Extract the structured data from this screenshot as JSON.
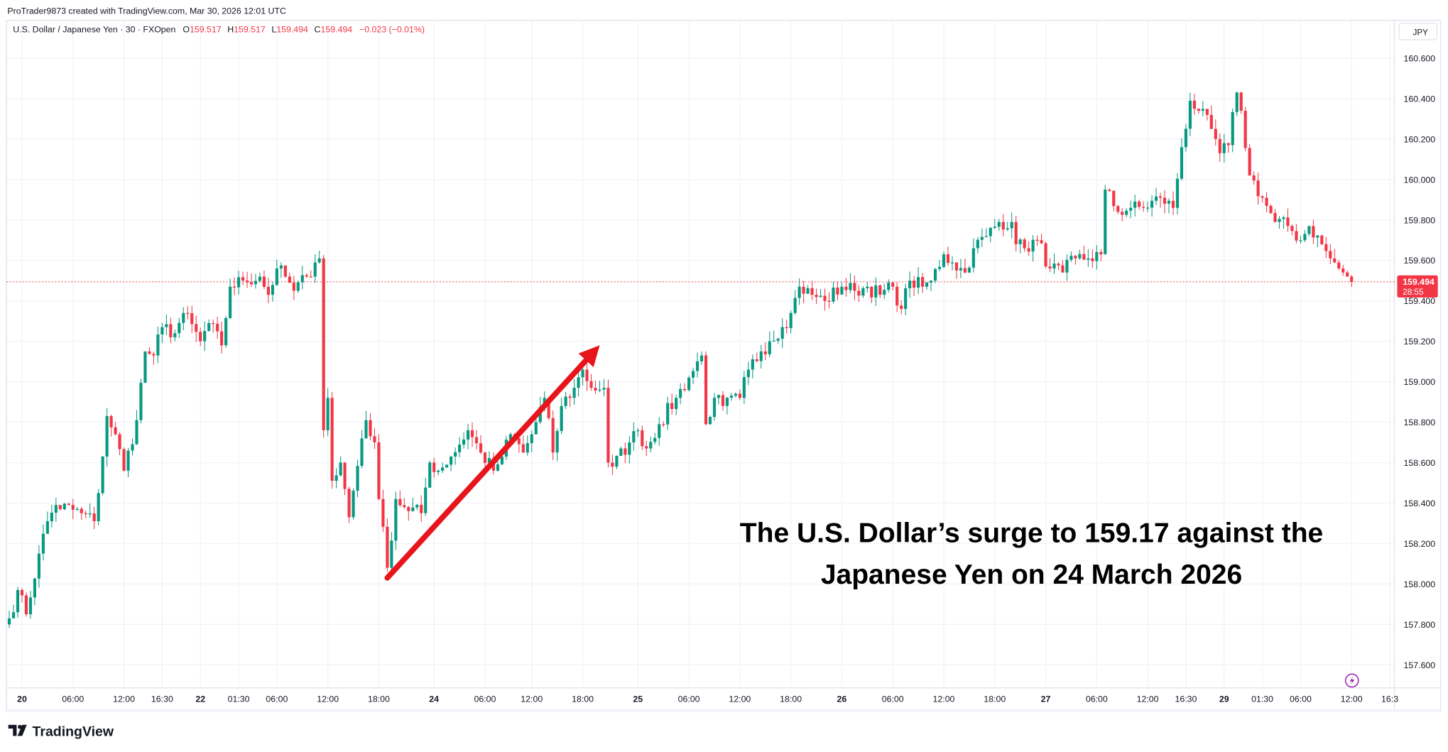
{
  "header": {
    "credit": "ProTrader9873 created with TradingView.com, Mar 30, 2026 12:01 UTC",
    "symbol": "U.S. Dollar / Japanese Yen · 30 · FXOpen",
    "o_label": "O",
    "o_value": "159.517",
    "h_label": "H",
    "h_value": "159.517",
    "l_label": "L",
    "l_value": "159.494",
    "c_label": "C",
    "c_value": "159.494",
    "change": "−0.023 (−0.01%)"
  },
  "currency_button": "JPY",
  "last_price": {
    "value": "159.494",
    "countdown": "28:55"
  },
  "annotation": {
    "line1": "The U.S. Dollar’s surge to 159.17 against the",
    "line2": "Japanese Yen on 24 March 2026"
  },
  "footer": {
    "logo_text": "TradingView"
  },
  "colors": {
    "up": "#089981",
    "down": "#f23645",
    "arrow": "#e8141b",
    "accent": "#9c27b0"
  },
  "chart_data": {
    "type": "candlestick",
    "title": "U.S. Dollar / Japanese Yen · 30 · FXOpen",
    "ylabel": "JPY",
    "ylim": [
      157.5,
      160.75
    ],
    "y_ticks": [
      "160.600",
      "160.400",
      "160.200",
      "160.000",
      "159.800",
      "159.600",
      "159.400",
      "159.200",
      "159.000",
      "158.800",
      "158.600",
      "158.400",
      "158.200",
      "158.000",
      "157.800",
      "157.600"
    ],
    "x_ticks": [
      [
        "20",
        3
      ],
      [
        "06:00",
        15
      ],
      [
        "12:00",
        27
      ],
      [
        "16:30",
        36
      ],
      [
        "22",
        45
      ],
      [
        "01:30",
        54
      ],
      [
        "06:00",
        63
      ],
      [
        "12:00",
        75
      ],
      [
        "18:00",
        87
      ],
      [
        "24",
        100
      ],
      [
        "06:00",
        112
      ],
      [
        "12:00",
        123
      ],
      [
        "18:00",
        135
      ],
      [
        "25",
        148
      ],
      [
        "06:00",
        160
      ],
      [
        "12:00",
        172
      ],
      [
        "18:00",
        184
      ],
      [
        "26",
        196
      ],
      [
        "06:00",
        208
      ],
      [
        "12:00",
        220
      ],
      [
        "18:00",
        232
      ],
      [
        "27",
        244
      ],
      [
        "06:00",
        256
      ],
      [
        "12:00",
        268
      ],
      [
        "16:30",
        277
      ],
      [
        "29",
        286
      ],
      [
        "01:30",
        295
      ],
      [
        "06:00",
        304
      ],
      [
        "12:00",
        316
      ],
      [
        "16:3",
        325
      ]
    ],
    "bar_count": 317,
    "close_anchors": [
      [
        0,
        157.83
      ],
      [
        2,
        157.97
      ],
      [
        4,
        157.85
      ],
      [
        7,
        158.15
      ],
      [
        9,
        158.31
      ],
      [
        11,
        158.39
      ],
      [
        17,
        158.35
      ],
      [
        20,
        158.31
      ],
      [
        22,
        158.63
      ],
      [
        23,
        158.83
      ],
      [
        25,
        158.74
      ],
      [
        27,
        158.56
      ],
      [
        30,
        158.81
      ],
      [
        32,
        159.15
      ],
      [
        34,
        159.13
      ],
      [
        36,
        159.27
      ],
      [
        39,
        159.24
      ],
      [
        41,
        159.34
      ],
      [
        45,
        159.2
      ],
      [
        47,
        159.29
      ],
      [
        50,
        159.18
      ],
      [
        52,
        159.47
      ],
      [
        55,
        159.5
      ],
      [
        59,
        159.52
      ],
      [
        61,
        159.43
      ],
      [
        63,
        159.56
      ],
      [
        65,
        159.52
      ],
      [
        67,
        159.45
      ],
      [
        70,
        159.52
      ],
      [
        72,
        159.59
      ],
      [
        73,
        159.61
      ],
      [
        74,
        158.76
      ],
      [
        75,
        158.92
      ],
      [
        76,
        158.51
      ],
      [
        78,
        158.6
      ],
      [
        80,
        158.33
      ],
      [
        83,
        158.72
      ],
      [
        84,
        158.81
      ],
      [
        86,
        158.7
      ],
      [
        87,
        158.42
      ],
      [
        89,
        158.08
      ],
      [
        91,
        158.42
      ],
      [
        93,
        158.38
      ],
      [
        97,
        158.35
      ],
      [
        99,
        158.6
      ],
      [
        101,
        158.56
      ],
      [
        104,
        158.63
      ],
      [
        108,
        158.76
      ],
      [
        111,
        158.65
      ],
      [
        114,
        158.56
      ],
      [
        116,
        158.63
      ],
      [
        118,
        158.74
      ],
      [
        121,
        158.65
      ],
      [
        123,
        158.74
      ],
      [
        126,
        158.92
      ],
      [
        128,
        158.65
      ],
      [
        130,
        158.88
      ],
      [
        133,
        158.97
      ],
      [
        135,
        159.06
      ],
      [
        137,
        158.97
      ],
      [
        140,
        158.97
      ],
      [
        141,
        158.6
      ],
      [
        142,
        158.58
      ],
      [
        146,
        158.7
      ],
      [
        148,
        158.76
      ],
      [
        150,
        158.67
      ],
      [
        153,
        158.79
      ],
      [
        157,
        158.92
      ],
      [
        160,
        159.02
      ],
      [
        163,
        159.13
      ],
      [
        164,
        158.79
      ],
      [
        166,
        158.92
      ],
      [
        168,
        158.88
      ],
      [
        172,
        158.92
      ],
      [
        174,
        159.06
      ],
      [
        177,
        159.15
      ],
      [
        179,
        159.2
      ],
      [
        182,
        159.27
      ],
      [
        184,
        159.34
      ],
      [
        186,
        159.47
      ],
      [
        189,
        159.43
      ],
      [
        192,
        159.4
      ],
      [
        196,
        159.47
      ],
      [
        199,
        159.45
      ],
      [
        202,
        159.47
      ],
      [
        205,
        159.43
      ],
      [
        208,
        159.47
      ],
      [
        210,
        159.36
      ],
      [
        212,
        159.5
      ],
      [
        215,
        159.47
      ],
      [
        217,
        159.5
      ],
      [
        220,
        159.63
      ],
      [
        222,
        159.59
      ],
      [
        225,
        159.54
      ],
      [
        227,
        159.66
      ],
      [
        230,
        159.72
      ],
      [
        233,
        159.79
      ],
      [
        236,
        159.79
      ],
      [
        237,
        159.68
      ],
      [
        239,
        159.66
      ],
      [
        242,
        159.7
      ],
      [
        245,
        159.56
      ],
      [
        248,
        159.54
      ],
      [
        251,
        159.61
      ],
      [
        254,
        159.61
      ],
      [
        257,
        159.63
      ],
      [
        258,
        159.95
      ],
      [
        261,
        159.84
      ],
      [
        264,
        159.86
      ],
      [
        267,
        159.86
      ],
      [
        271,
        159.91
      ],
      [
        274,
        159.86
      ],
      [
        276,
        160.16
      ],
      [
        278,
        160.39
      ],
      [
        280,
        160.34
      ],
      [
        283,
        160.25
      ],
      [
        285,
        160.13
      ],
      [
        287,
        160.17
      ],
      [
        289,
        160.43
      ],
      [
        290,
        160.34
      ],
      [
        292,
        160.02
      ],
      [
        295,
        159.91
      ],
      [
        298,
        159.79
      ],
      [
        301,
        159.77
      ],
      [
        304,
        159.7
      ],
      [
        306,
        159.77
      ],
      [
        309,
        159.68
      ],
      [
        311,
        159.61
      ],
      [
        313,
        159.56
      ],
      [
        315,
        159.52
      ],
      [
        316,
        159.494
      ]
    ],
    "current_price": 159.494,
    "annotation_arrow": {
      "from": [
        89,
        158.03
      ],
      "to": [
        139,
        159.18
      ]
    }
  }
}
